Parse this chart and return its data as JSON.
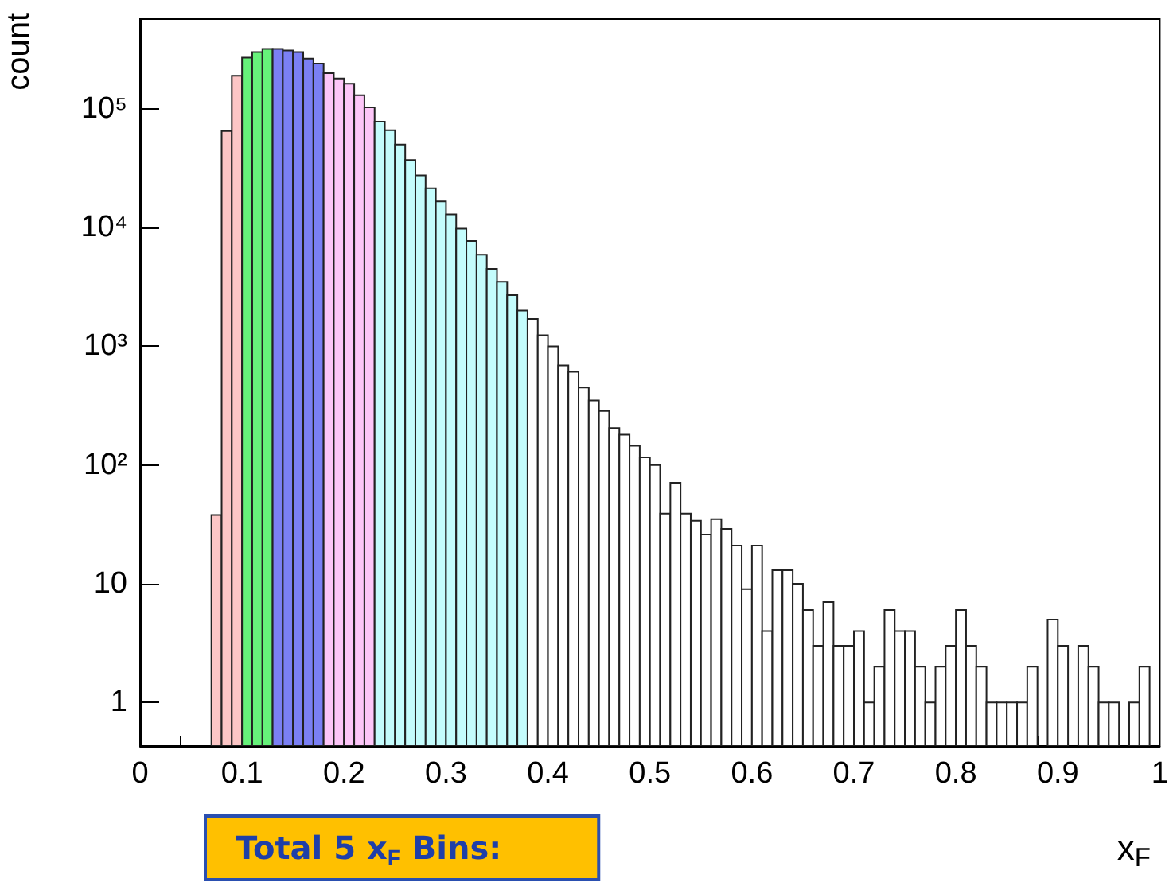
{
  "chart_data": {
    "type": "histogram",
    "ylabel": "count",
    "xlabel": "x$_{F}$",
    "annotations": [
      "Total 5 x$_{F}$ Bins:"
    ],
    "bins": [
      0.07,
      0.08,
      0.09,
      0.1,
      0.11,
      0.12,
      0.13,
      0.14,
      0.15,
      0.16,
      0.17,
      0.18,
      0.19,
      0.2,
      0.21,
      0.22,
      0.23,
      0.24,
      0.25,
      0.26,
      0.27,
      0.28,
      0.29,
      0.3,
      0.31,
      0.32,
      0.33,
      0.34,
      0.35,
      0.36,
      0.37,
      0.38,
      0.39,
      0.4,
      0.41,
      0.42,
      0.43,
      0.44,
      0.45,
      0.46,
      0.47,
      0.48,
      0.49,
      0.5,
      0.51,
      0.52,
      0.53,
      0.54,
      0.55,
      0.56,
      0.57,
      0.58,
      0.59,
      0.6,
      0.61,
      0.62,
      0.63,
      0.64,
      0.65,
      0.66,
      0.67,
      0.68,
      0.69,
      0.7,
      0.71,
      0.72,
      0.73,
      0.74,
      0.75,
      0.76,
      0.77,
      0.78,
      0.79,
      0.8,
      0.81,
      0.82,
      0.83,
      0.84,
      0.85,
      0.86,
      0.87,
      0.88,
      0.89,
      0.9,
      0.91,
      0.92,
      0.93,
      0.94,
      0.95,
      0.96,
      0.97,
      0.98,
      0.99,
      1
    ],
    "values": [
      38,
      65000,
      190000,
      270000,
      300000,
      320000,
      320000,
      310000,
      300000,
      265000,
      240000,
      200000,
      180000,
      163000,
      130000,
      103000,
      78000,
      66000,
      50000,
      37000,
      27500,
      21400,
      16600,
      12900,
      9800,
      7700,
      5900,
      4500,
      3500,
      2700,
      2000,
      1700,
      1240,
      1000,
      690,
      610,
      450,
      350,
      285,
      205,
      180,
      145,
      116,
      100,
      39,
      71,
      39,
      34,
      26,
      35,
      29,
      21,
      9,
      21,
      4,
      13,
      13,
      10,
      6,
      3,
      7,
      3,
      3,
      4,
      1,
      2,
      6,
      4,
      4,
      2,
      1,
      2,
      3,
      6,
      3,
      2,
      1,
      1,
      1,
      1,
      2,
      null,
      5,
      3,
      null,
      3,
      2,
      1,
      1,
      null,
      1,
      2,
      null
    ],
    "colors": [
      "#fcc6c6",
      "#fcc6c6",
      "#fcc6c6",
      "#66f27a",
      "#66f27a",
      "#66f27a",
      "#7b80f5",
      "#7b80f5",
      "#7b80f5",
      "#7b80f5",
      "#7b80f5",
      "#fdc6f8",
      "#fdc6f8",
      "#fdc6f8",
      "#fdc6f8",
      "#fdc6f8",
      "#c4fcfc",
      "#c4fcfc",
      "#c4fcfc",
      "#c4fcfc",
      "#c4fcfc",
      "#c4fcfc",
      "#c4fcfc",
      "#c4fcfc",
      "#c4fcfc",
      "#c4fcfc",
      "#c4fcfc",
      "#c4fcfc",
      "#c4fcfc",
      "#c4fcfc",
      "#c4fcfc",
      "#ffffff",
      "#ffffff",
      "#ffffff",
      "#ffffff",
      "#ffffff",
      "#ffffff",
      "#ffffff",
      "#ffffff",
      "#ffffff",
      "#ffffff",
      "#ffffff",
      "#ffffff",
      "#ffffff",
      "#ffffff",
      "#ffffff",
      "#ffffff",
      "#ffffff",
      "#ffffff",
      "#ffffff",
      "#ffffff",
      "#ffffff",
      "#ffffff",
      "#ffffff",
      "#ffffff",
      "#ffffff",
      "#ffffff",
      "#ffffff",
      "#ffffff",
      "#ffffff",
      "#ffffff",
      "#ffffff",
      "#ffffff",
      "#ffffff",
      "#ffffff",
      "#ffffff",
      "#ffffff",
      "#ffffff",
      "#ffffff",
      "#ffffff",
      "#ffffff",
      "#ffffff",
      "#ffffff",
      "#ffffff",
      "#ffffff",
      "#ffffff",
      "#ffffff",
      "#ffffff",
      "#ffffff",
      "#ffffff",
      "#ffffff",
      null,
      "#ffffff",
      "#ffffff",
      null,
      "#ffffff",
      "#ffffff",
      "#ffffff",
      "#ffffff",
      null,
      "#ffffff",
      "#ffffff",
      null
    ],
    "log": "y",
    "xlim": [
      0,
      1
    ],
    "xticks": [
      0,
      0.1,
      0.2,
      0.3,
      0.4,
      0.5,
      0.6,
      0.7,
      0.8,
      0.9,
      1
    ],
    "ylim": [
      0.43,
      570000
    ],
    "yticks": [
      1,
      10,
      {
        "value": 100,
        "label": "10²"
      },
      {
        "value": 1000,
        "label": "10³"
      },
      {
        "value": 10000,
        "label": "10⁴"
      },
      {
        "value": 100000,
        "label": "10⁵"
      }
    ],
    "grid": false
  }
}
